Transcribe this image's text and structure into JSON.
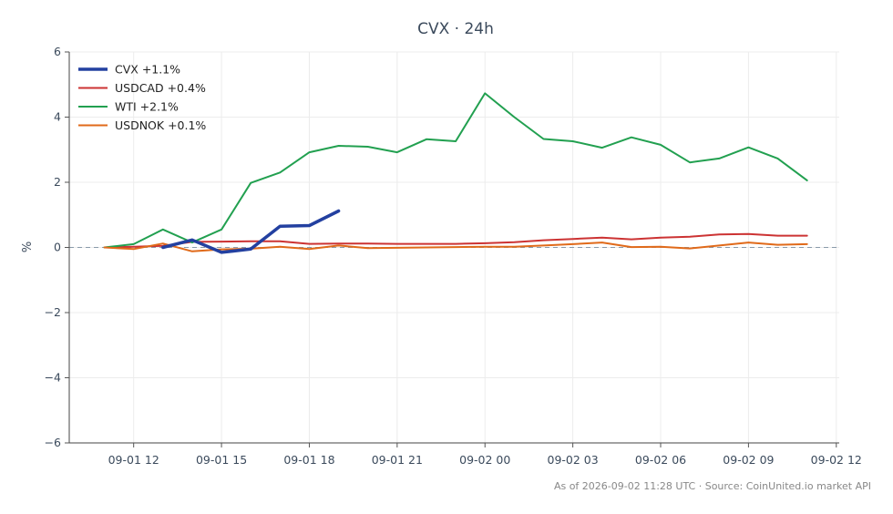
{
  "chart_data": {
    "type": "line",
    "title": "CVX · 24h",
    "ylabel": "%",
    "xlabel": "",
    "ylim": [
      -6,
      6
    ],
    "yticks": [
      -6,
      -4,
      -2,
      0,
      2,
      4,
      6
    ],
    "ytick_labels": [
      "−6",
      "−4",
      "−2",
      "0",
      "2",
      "4",
      "6"
    ],
    "xticks": [
      {
        "x": 12,
        "label": "09-01 12"
      },
      {
        "x": 15,
        "label": "09-01 15"
      },
      {
        "x": 18,
        "label": "09-01 18"
      },
      {
        "x": 21,
        "label": "09-01 21"
      },
      {
        "x": 24,
        "label": "09-02 00"
      },
      {
        "x": 27,
        "label": "09-02 03"
      },
      {
        "x": 30,
        "label": "09-02 06"
      },
      {
        "x": 33,
        "label": "09-02 09"
      },
      {
        "x": 36,
        "label": "09-02 12"
      }
    ],
    "xlim": [
      9.8,
      36.1
    ],
    "zero_line": true,
    "grid": true,
    "legend_position": "top-left",
    "series": [
      {
        "name": "CVX +1.1%",
        "color": "#2340a0",
        "width": 3.5,
        "x": [
          13,
          14,
          15,
          16,
          17,
          18,
          19
        ],
        "y": [
          0.0,
          0.23,
          -0.15,
          -0.05,
          0.65,
          0.67,
          1.12
        ]
      },
      {
        "name": "USDCAD +0.4%",
        "color": "#cc3333",
        "width": 2,
        "x": [
          11,
          12,
          13,
          14,
          15,
          16,
          17,
          18,
          19,
          20,
          21,
          22,
          23,
          24,
          25,
          26,
          27,
          28,
          29,
          30,
          31,
          32,
          33,
          34,
          35
        ],
        "y": [
          0.0,
          0.02,
          0.05,
          0.17,
          0.18,
          0.19,
          0.19,
          0.11,
          0.12,
          0.12,
          0.11,
          0.11,
          0.11,
          0.13,
          0.16,
          0.22,
          0.26,
          0.3,
          0.25,
          0.3,
          0.33,
          0.4,
          0.41,
          0.36,
          0.36
        ]
      },
      {
        "name": "WTI +2.1%",
        "color": "#22a050",
        "width": 2,
        "x": [
          11,
          12,
          13,
          14,
          15,
          16,
          17,
          18,
          19,
          20,
          21,
          22,
          23,
          24,
          25,
          26,
          27,
          28,
          29,
          30,
          31,
          32,
          33,
          34,
          35
        ],
        "y": [
          0.0,
          0.1,
          0.55,
          0.15,
          0.55,
          1.98,
          2.3,
          2.92,
          3.12,
          3.09,
          2.92,
          3.32,
          3.26,
          4.73,
          4.0,
          3.33,
          3.26,
          3.06,
          3.38,
          3.15,
          2.61,
          2.73,
          3.07,
          2.73,
          2.06
        ]
      },
      {
        "name": "USDNOK +0.1%",
        "color": "#e06a1a",
        "width": 2,
        "x": [
          11,
          12,
          13,
          14,
          15,
          16,
          17,
          18,
          19,
          20,
          21,
          22,
          23,
          24,
          25,
          26,
          27,
          28,
          29,
          30,
          31,
          32,
          33,
          34,
          35
        ],
        "y": [
          0.0,
          -0.05,
          0.12,
          -0.12,
          -0.06,
          -0.04,
          0.02,
          -0.05,
          0.06,
          -0.02,
          -0.01,
          0.0,
          0.01,
          0.02,
          0.02,
          0.06,
          0.1,
          0.15,
          0.01,
          0.02,
          -0.03,
          0.06,
          0.15,
          0.08,
          0.1
        ]
      }
    ]
  },
  "footer": {
    "note": "As of 2026-09-02 11:28 UTC · Source: CoinUnited.io market API"
  }
}
